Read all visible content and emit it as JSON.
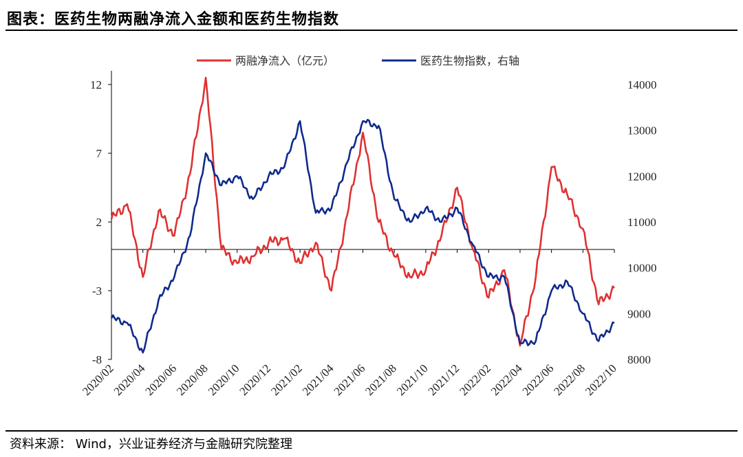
{
  "header": {
    "title": "图表：医药生物两融净流入金额和医药生物指数"
  },
  "footer": {
    "source": "资料来源： Wind，兴业证券经济与金融研究院整理"
  },
  "colors": {
    "series1": "#e03030",
    "series2": "#0f2a8c",
    "axis": "#000000"
  },
  "chart_data": {
    "type": "line",
    "title": "",
    "legend_position": "top",
    "x_ticks": [
      "2020/02",
      "2020/04",
      "2020/06",
      "2020/08",
      "2020/10",
      "2020/12",
      "2021/02",
      "2021/04",
      "2021/06",
      "2021/08",
      "2021/10",
      "2021/12",
      "2022/02",
      "2022/04",
      "2022/06",
      "2022/08",
      "2022/10"
    ],
    "y_left": {
      "ticks": [
        "12",
        "7",
        "2",
        "-3",
        "-8"
      ],
      "range": [
        -8,
        12
      ]
    },
    "y_right": {
      "ticks": [
        "14000",
        "13000",
        "12000",
        "11000",
        "10000",
        "9000",
        "8000"
      ],
      "range": [
        8000,
        14000
      ]
    },
    "series": [
      {
        "name": "两融净流入（亿元）",
        "axis": "left",
        "x": [
          "2020/02",
          "2020/03",
          "2020/04",
          "2020/05",
          "2020/06",
          "2020/07",
          "2020/08",
          "2020/09",
          "2020/10",
          "2020/11",
          "2020/12",
          "2021/01",
          "2021/02",
          "2021/03",
          "2021/04",
          "2021/05",
          "2021/06",
          "2021/07",
          "2021/08",
          "2021/09",
          "2021/10",
          "2021/11",
          "2021/12",
          "2022/01",
          "2022/02",
          "2022/03",
          "2022/04",
          "2022/05",
          "2022/06",
          "2022/07",
          "2022/08",
          "2022/09",
          "2022/10"
        ],
        "values": [
          2.2,
          3.3,
          -2.0,
          2.8,
          1.0,
          5.5,
          12.5,
          0.0,
          -1.0,
          -0.5,
          0.5,
          0.8,
          -1.0,
          0.5,
          -3.0,
          2.5,
          8.5,
          2.0,
          -0.5,
          -2.0,
          -1.5,
          1.0,
          4.5,
          0.0,
          -3.5,
          -1.5,
          -7.0,
          -2.0,
          6.0,
          4.0,
          1.5,
          -4.0,
          -2.8
        ]
      },
      {
        "name": "医药生物指数，右轴",
        "axis": "right",
        "x": [
          "2020/02",
          "2020/03",
          "2020/04",
          "2020/05",
          "2020/06",
          "2020/07",
          "2020/08",
          "2020/09",
          "2020/10",
          "2020/11",
          "2020/12",
          "2021/01",
          "2021/02",
          "2021/03",
          "2021/04",
          "2021/05",
          "2021/06",
          "2021/07",
          "2021/08",
          "2021/09",
          "2021/10",
          "2021/11",
          "2021/12",
          "2022/01",
          "2022/02",
          "2022/03",
          "2022/04",
          "2022/05",
          "2022/06",
          "2022/07",
          "2022/08",
          "2022/09",
          "2022/10"
        ],
        "values": [
          8900,
          8800,
          8150,
          9300,
          9800,
          10700,
          12500,
          11800,
          12000,
          11500,
          12000,
          12200,
          13200,
          11200,
          11300,
          12300,
          13200,
          13100,
          11500,
          11000,
          11300,
          11000,
          11300,
          10500,
          9800,
          9800,
          8350,
          8400,
          9500,
          9700,
          9000,
          8400,
          8800
        ]
      }
    ]
  }
}
